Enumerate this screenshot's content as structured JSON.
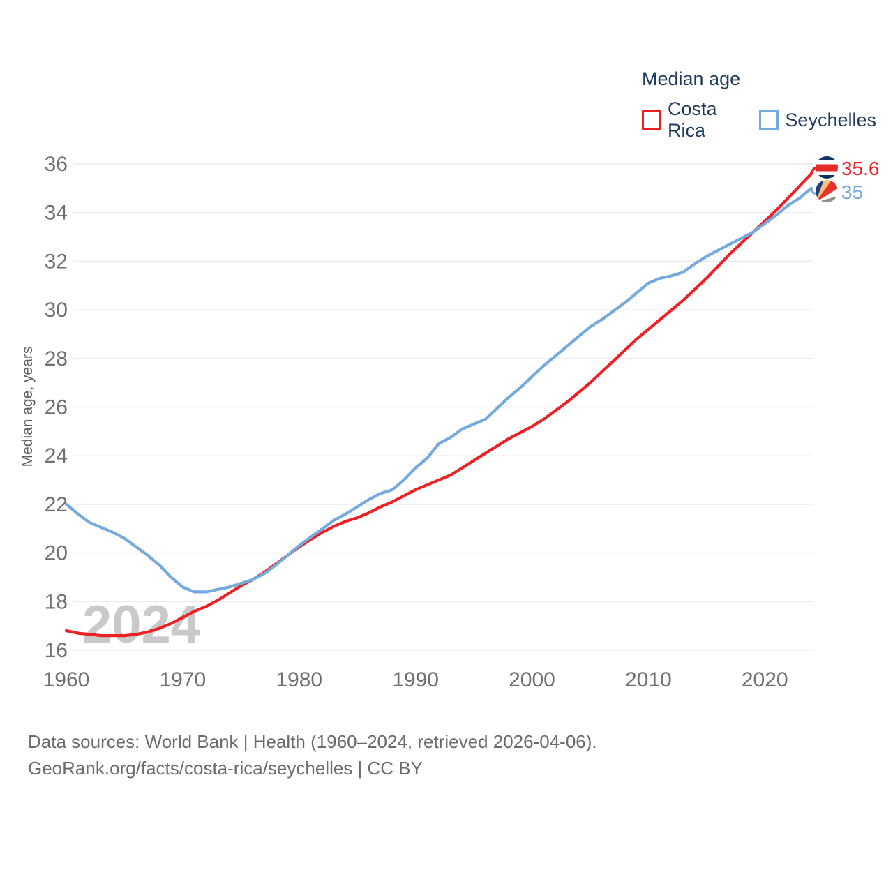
{
  "legend": {
    "title": "Median age",
    "items": [
      {
        "label": "Costa Rica",
        "color": "#ed2124"
      },
      {
        "label": "Seychelles",
        "color": "#74aadd"
      }
    ]
  },
  "y_axis": {
    "title": "Median age, years",
    "ticks": [
      16,
      18,
      20,
      22,
      24,
      26,
      28,
      30,
      32,
      34,
      36
    ]
  },
  "x_axis": {
    "ticks": [
      1960,
      1970,
      1980,
      1990,
      2000,
      2010,
      2020
    ]
  },
  "watermark": "2024",
  "end_labels": [
    {
      "value": "35.6",
      "series": "Costa Rica",
      "color": "#ed2124",
      "flag": "costa-rica-flag"
    },
    {
      "value": "35",
      "series": "Seychelles",
      "color": "#74aadd",
      "flag": "seychelles-flag"
    }
  ],
  "footer": {
    "line1": "Data sources: World Bank | Health (1960–2024, retrieved 2026-04-06).",
    "line2": "GeoRank.org/facts/costa-rica/seychelles | CC BY"
  },
  "chart_data": {
    "type": "line",
    "title": "Median age",
    "xlabel": "",
    "ylabel": "Median age, years",
    "xlim": [
      1960,
      2024
    ],
    "ylim": [
      16,
      36
    ],
    "xticks": [
      1960,
      1970,
      1980,
      1990,
      2000,
      2010,
      2020
    ],
    "yticks": [
      16,
      18,
      20,
      22,
      24,
      26,
      28,
      30,
      32,
      34,
      36
    ],
    "grid": "horizontal",
    "legend_position": "top-right",
    "x": [
      1960,
      1961,
      1962,
      1963,
      1964,
      1965,
      1966,
      1967,
      1968,
      1969,
      1970,
      1971,
      1972,
      1973,
      1974,
      1975,
      1976,
      1977,
      1978,
      1979,
      1980,
      1981,
      1982,
      1983,
      1984,
      1985,
      1986,
      1987,
      1988,
      1989,
      1990,
      1991,
      1992,
      1993,
      1994,
      1995,
      1996,
      1997,
      1998,
      1999,
      2000,
      2001,
      2002,
      2003,
      2004,
      2005,
      2006,
      2007,
      2008,
      2009,
      2010,
      2011,
      2012,
      2013,
      2014,
      2015,
      2016,
      2017,
      2018,
      2019,
      2020,
      2021,
      2022,
      2023,
      2024
    ],
    "series": [
      {
        "name": "Costa Rica",
        "color": "#ed2124",
        "end_label": "35.6",
        "values": [
          16.8,
          16.7,
          16.65,
          16.6,
          16.6,
          16.6,
          16.65,
          16.75,
          16.9,
          17.1,
          17.35,
          17.6,
          17.8,
          18.05,
          18.35,
          18.65,
          18.9,
          19.2,
          19.55,
          19.9,
          20.25,
          20.55,
          20.85,
          21.1,
          21.3,
          21.45,
          21.65,
          21.9,
          22.1,
          22.35,
          22.6,
          22.8,
          23.0,
          23.2,
          23.5,
          23.8,
          24.1,
          24.4,
          24.7,
          24.95,
          25.2,
          25.5,
          25.85,
          26.2,
          26.6,
          27.0,
          27.45,
          27.9,
          28.35,
          28.8,
          29.2,
          29.6,
          30.0,
          30.4,
          30.85,
          31.3,
          31.8,
          32.3,
          32.75,
          33.2,
          33.65,
          34.1,
          34.6,
          35.1,
          35.6
        ]
      },
      {
        "name": "Seychelles",
        "color": "#74aadd",
        "end_label": "35",
        "values": [
          22.0,
          21.6,
          21.25,
          21.05,
          20.85,
          20.6,
          20.25,
          19.9,
          19.5,
          19.0,
          18.6,
          18.4,
          18.4,
          18.5,
          18.6,
          18.75,
          18.9,
          19.15,
          19.5,
          19.9,
          20.3,
          20.65,
          21.0,
          21.35,
          21.6,
          21.9,
          22.2,
          22.45,
          22.6,
          23.0,
          23.5,
          23.9,
          24.5,
          24.75,
          25.1,
          25.3,
          25.5,
          25.95,
          26.4,
          26.8,
          27.25,
          27.7,
          28.1,
          28.5,
          28.9,
          29.3,
          29.6,
          29.95,
          30.3,
          30.7,
          31.1,
          31.3,
          31.4,
          31.55,
          31.9,
          32.2,
          32.45,
          32.7,
          32.95,
          33.2,
          33.55,
          33.9,
          34.3,
          34.6,
          35.0
        ]
      }
    ]
  }
}
